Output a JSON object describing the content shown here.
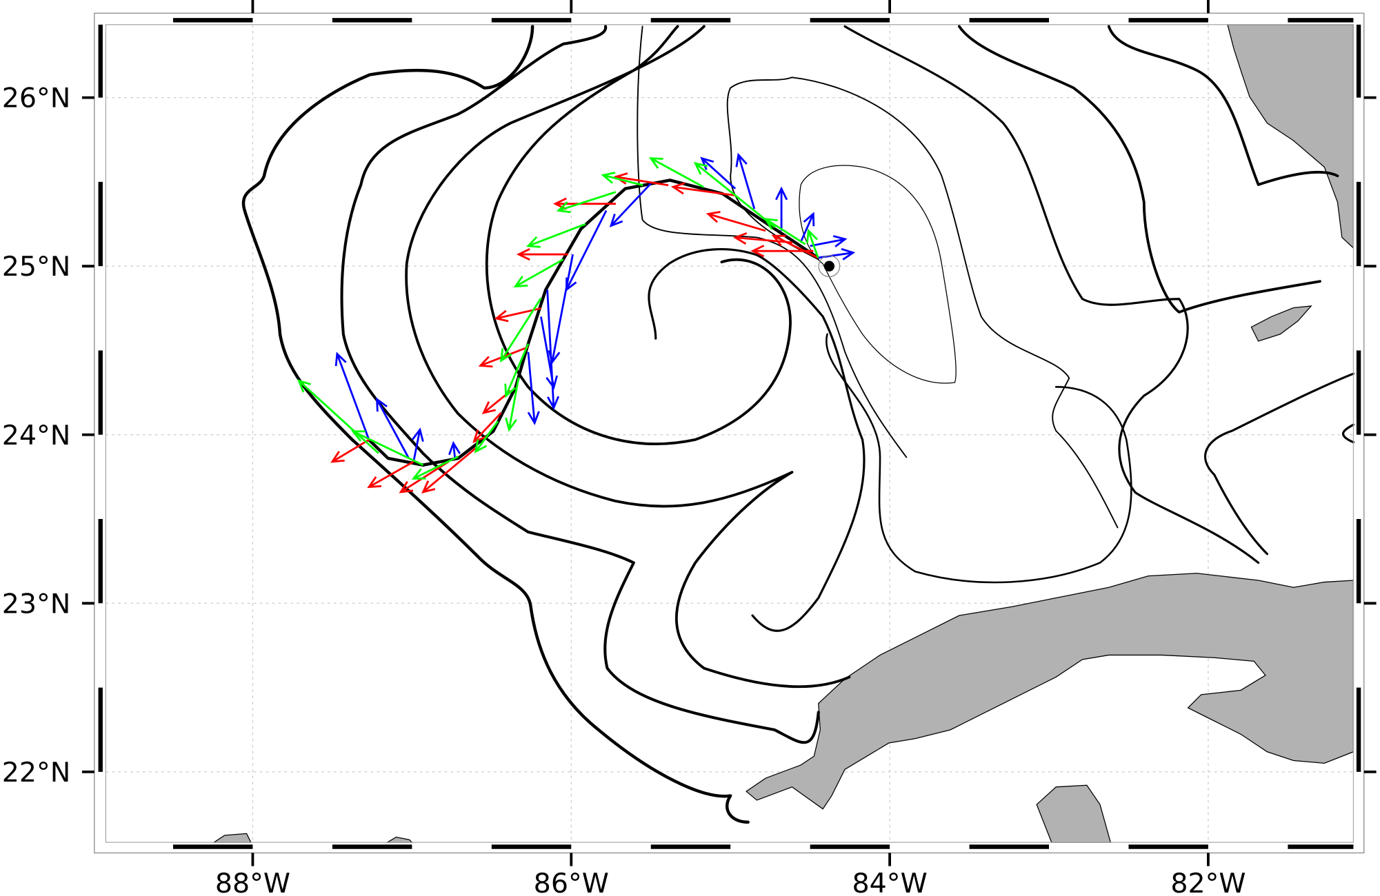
{
  "chart_data": {
    "type": "map",
    "projection": "lon-lat",
    "lon_range": [
      -88.92,
      -81.08
    ],
    "lat_range": [
      21.58,
      26.43
    ],
    "grid": true,
    "x_ticks": [
      {
        "value": -88,
        "label": "88°W"
      },
      {
        "value": -86,
        "label": "86°W"
      },
      {
        "value": -84,
        "label": "84°W"
      },
      {
        "value": -82,
        "label": "82°W"
      }
    ],
    "y_ticks": [
      {
        "value": 26,
        "label": "26°N"
      },
      {
        "value": 25,
        "label": "25°N"
      },
      {
        "value": 24,
        "label": "24°N"
      },
      {
        "value": 23,
        "label": "23°N"
      },
      {
        "value": 22,
        "label": "22°N"
      }
    ],
    "marker": {
      "lon": -84.38,
      "lat": 25.0,
      "color": "#000000"
    },
    "arrow_series": [
      {
        "name": "blue",
        "color": "#0000ff",
        "arrows": [
          [
            -84.45,
            25.05,
            0.22,
            0.03
          ],
          [
            -84.5,
            25.12,
            0.22,
            0.04
          ],
          [
            -84.56,
            25.14,
            0.08,
            0.17
          ],
          [
            -84.68,
            25.21,
            0.0,
            0.25
          ],
          [
            -84.85,
            25.34,
            -0.1,
            0.32
          ],
          [
            -84.97,
            25.46,
            -0.21,
            0.18
          ],
          [
            -85.5,
            25.49,
            -0.25,
            -0.25
          ],
          [
            -85.78,
            25.33,
            -0.25,
            -0.47
          ],
          [
            -85.99,
            25.07,
            -0.13,
            -0.64
          ],
          [
            -86.15,
            24.86,
            0.04,
            -0.7
          ],
          [
            -86.19,
            24.7,
            0.08,
            -0.42
          ],
          [
            -86.27,
            24.49,
            0.04,
            -0.42
          ],
          [
            -86.99,
            23.84,
            0.04,
            0.19
          ],
          [
            -86.73,
            23.86,
            -0.01,
            0.09
          ],
          [
            -87.02,
            23.86,
            -0.2,
            0.35
          ],
          [
            -87.27,
            23.97,
            -0.2,
            0.51
          ]
        ]
      },
      {
        "name": "red",
        "color": "#ff0000",
        "arrows": [
          [
            -84.45,
            25.05,
            -0.28,
            0.13
          ],
          [
            -84.48,
            25.09,
            -0.38,
            0.0
          ],
          [
            -84.61,
            25.14,
            -0.36,
            0.03
          ],
          [
            -84.78,
            25.21,
            -0.36,
            0.1
          ],
          [
            -84.97,
            25.42,
            -0.39,
            0.05
          ],
          [
            -85.39,
            25.48,
            -0.33,
            0.05
          ],
          [
            -85.72,
            25.37,
            -0.38,
            0.0
          ],
          [
            -86.02,
            25.07,
            -0.31,
            0.0
          ],
          [
            -86.19,
            24.75,
            -0.28,
            -0.06
          ],
          [
            -86.27,
            24.52,
            -0.3,
            -0.11
          ],
          [
            -86.38,
            24.26,
            -0.17,
            -0.13
          ],
          [
            -86.44,
            24.13,
            -0.17,
            -0.17
          ],
          [
            -86.6,
            23.92,
            -0.33,
            -0.26
          ],
          [
            -86.77,
            23.84,
            -0.3,
            -0.18
          ],
          [
            -86.99,
            23.84,
            -0.28,
            -0.15
          ],
          [
            -87.27,
            23.97,
            -0.23,
            -0.13
          ]
        ]
      },
      {
        "name": "green",
        "color": "#00ff00",
        "arrows": [
          [
            -84.45,
            25.05,
            -0.06,
            0.16
          ],
          [
            -84.53,
            25.13,
            -0.25,
            0.15
          ],
          [
            -84.72,
            25.23,
            -0.5,
            0.38
          ],
          [
            -85.17,
            25.47,
            -0.33,
            0.17
          ],
          [
            -85.55,
            25.48,
            -0.25,
            0.06
          ],
          [
            -85.72,
            25.44,
            -0.36,
            -0.11
          ],
          [
            -85.91,
            25.25,
            -0.36,
            -0.13
          ],
          [
            -86.05,
            25.04,
            -0.3,
            -0.16
          ],
          [
            -86.19,
            24.81,
            -0.25,
            -0.37
          ],
          [
            -86.27,
            24.54,
            -0.14,
            -0.31
          ],
          [
            -86.33,
            24.34,
            -0.06,
            -0.31
          ],
          [
            -86.46,
            24.08,
            -0.14,
            -0.18
          ],
          [
            -86.71,
            23.87,
            -0.28,
            -0.13
          ],
          [
            -86.93,
            23.82,
            -0.44,
            0.2
          ],
          [
            -87.21,
            23.89,
            -0.5,
            0.43
          ]
        ]
      }
    ],
    "front_line": [
      [
        -84.45,
        25.05
      ],
      [
        -84.72,
        25.22
      ],
      [
        -85.05,
        25.43
      ],
      [
        -85.38,
        25.51
      ],
      [
        -85.66,
        25.46
      ],
      [
        -85.94,
        25.22
      ],
      [
        -86.16,
        24.86
      ],
      [
        -86.27,
        24.54
      ],
      [
        -86.35,
        24.28
      ],
      [
        -86.49,
        24.02
      ],
      [
        -86.71,
        23.86
      ],
      [
        -86.93,
        23.82
      ],
      [
        -87.15,
        23.86
      ],
      [
        -87.27,
        23.97
      ]
    ]
  }
}
